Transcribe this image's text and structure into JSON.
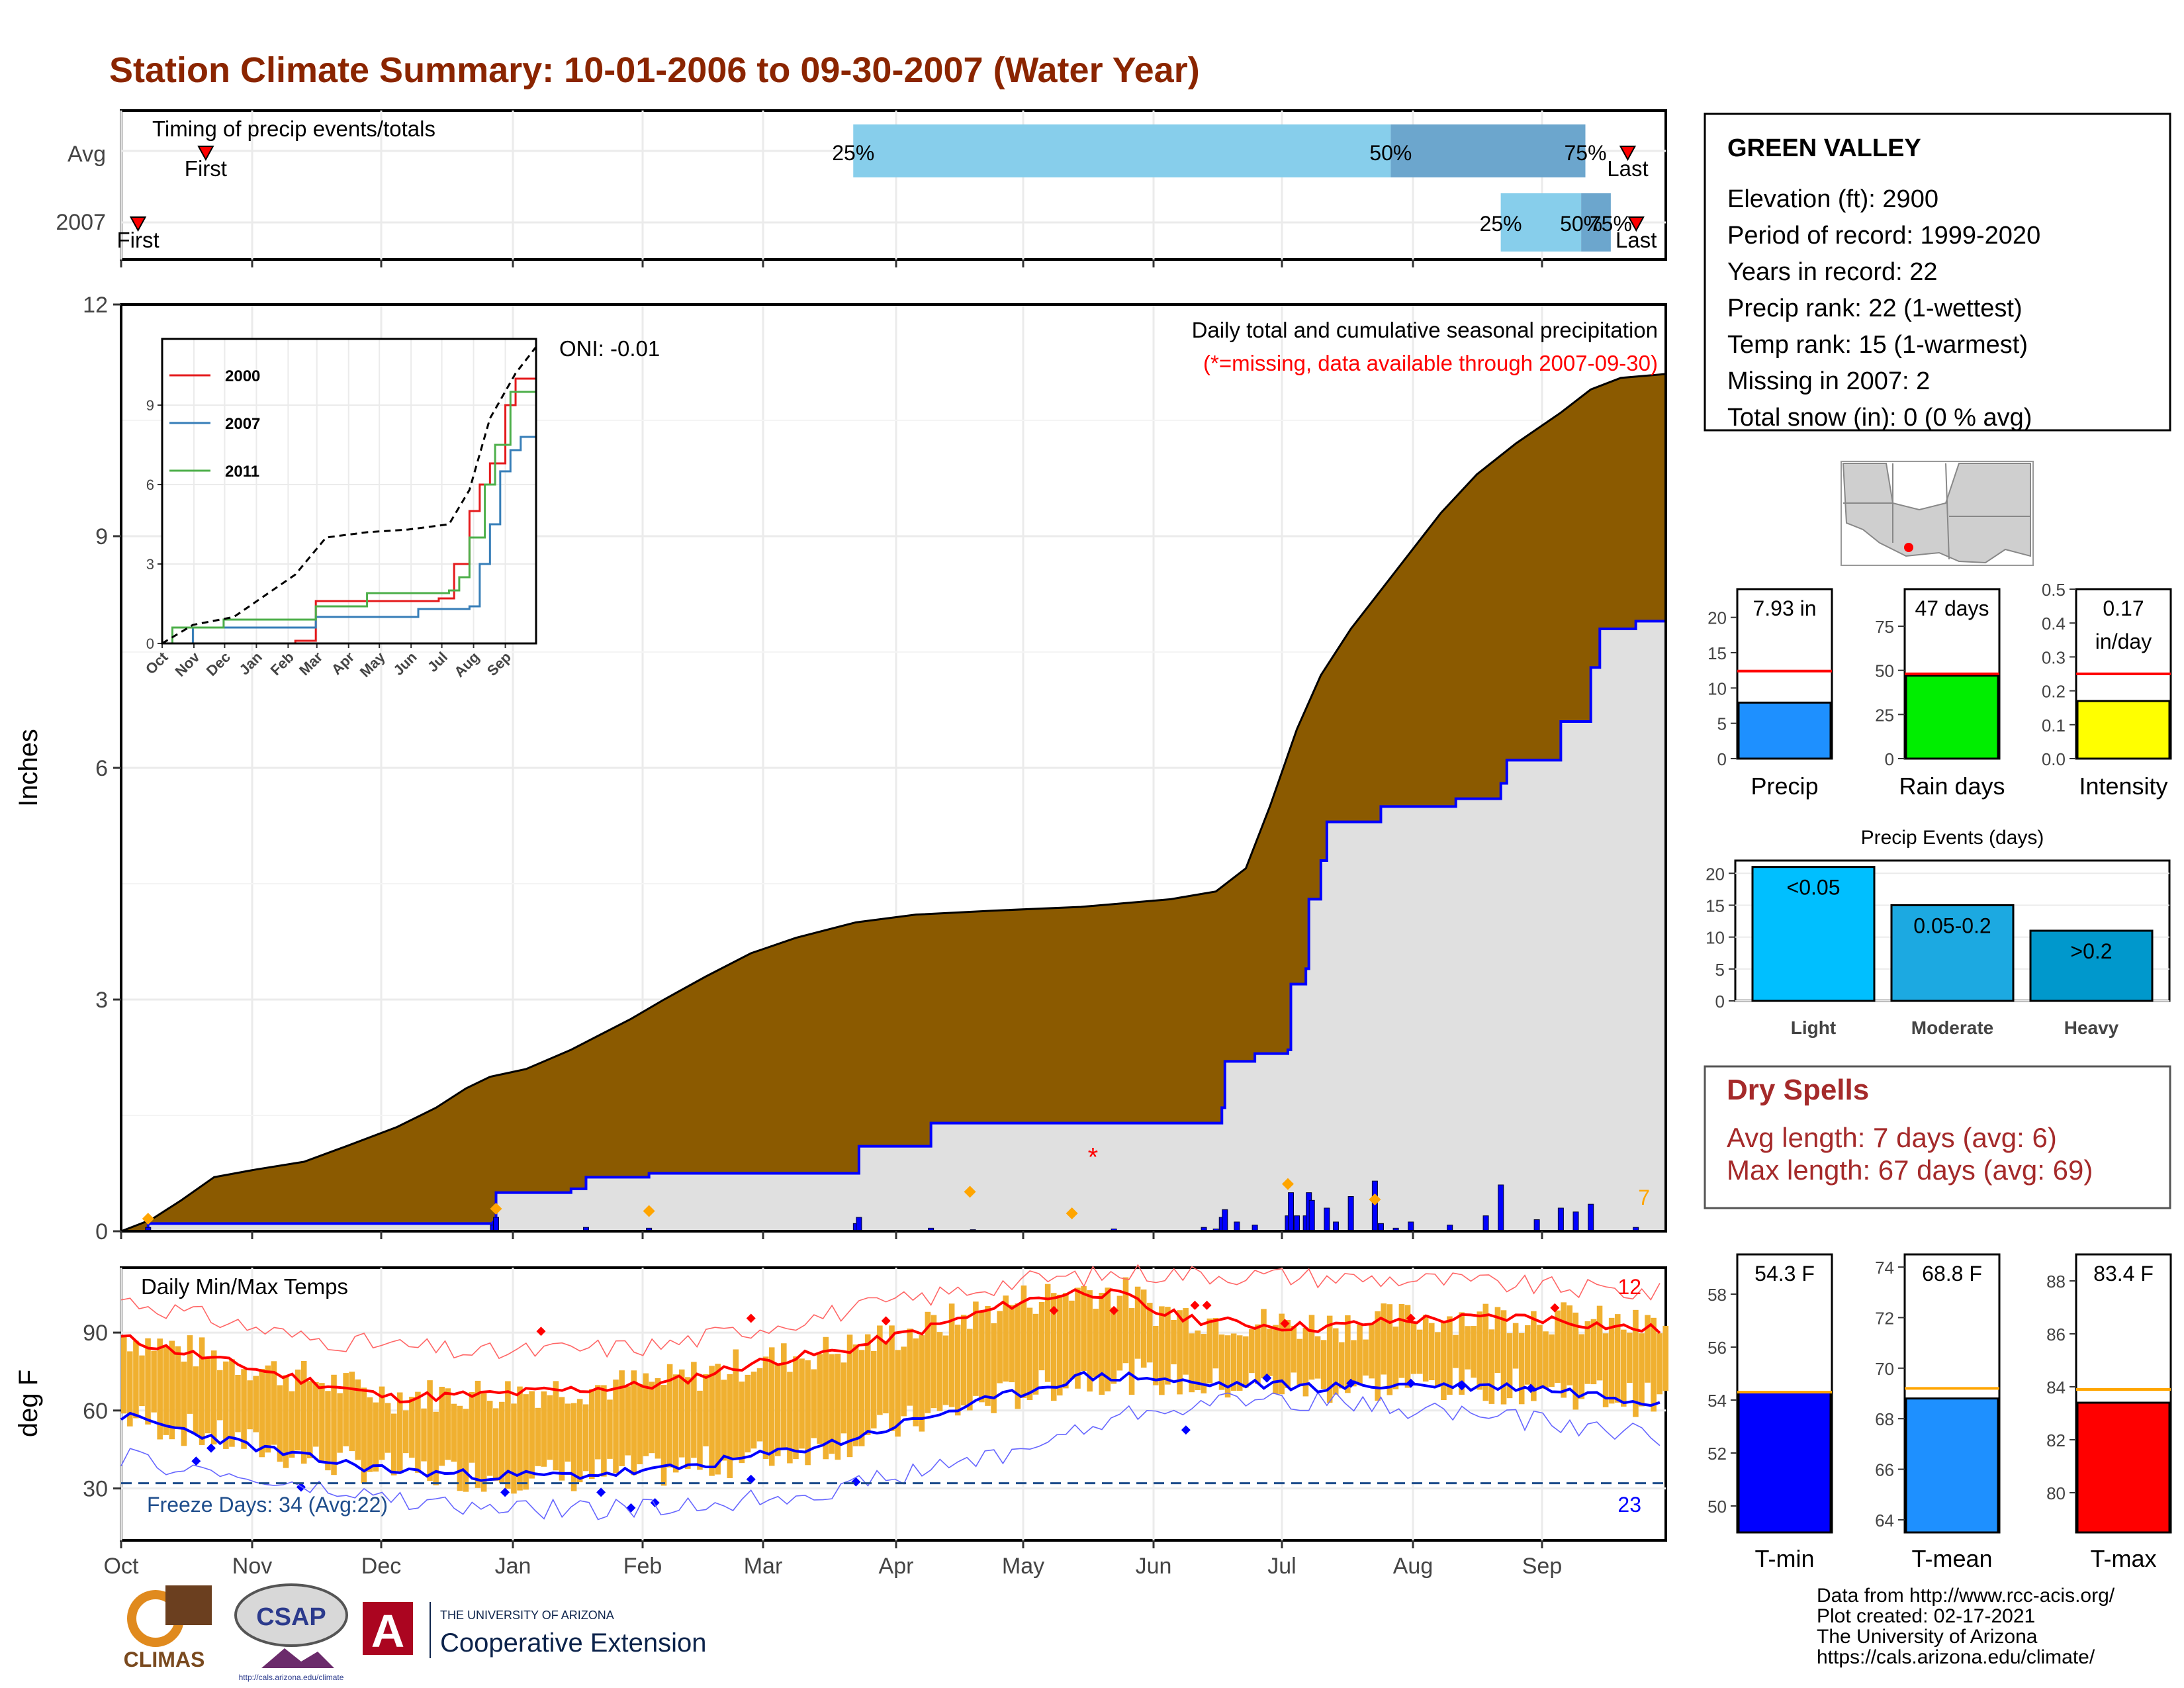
{
  "title": "Station Climate Summary: 10-01-2006 to 09-30-2007 (Water Year)",
  "months": [
    "Oct",
    "Nov",
    "Dec",
    "Jan",
    "Feb",
    "Mar",
    "Apr",
    "May",
    "Jun",
    "Jul",
    "Aug",
    "Sep"
  ],
  "timing": {
    "title": "Timing of precip events/totals",
    "rows": [
      "Avg",
      "2007"
    ],
    "avg": {
      "first_day": 20,
      "p25_day": 173,
      "p50_day": 300,
      "p75_day": 346,
      "last_day": 356
    },
    "y2007": {
      "first_day": 4,
      "p25_day": 326,
      "p50_day": 345,
      "p75_day": 352,
      "last_day": 358
    },
    "first_label": "First",
    "last_label": "Last",
    "pct_labels": [
      "25%",
      "50%",
      "75%"
    ]
  },
  "precip": {
    "ylabel": "Inches",
    "y_ticks": [
      0,
      3,
      6,
      9,
      12
    ],
    "ylim": [
      0,
      12
    ],
    "oni": "ONI: -0.01",
    "caption1": "Daily total and cumulative seasonal precipitation",
    "caption2": "(*=missing, data available through 2007-09-30)",
    "count_label": "7",
    "avg_cumulative": [
      [
        0,
        0
      ],
      [
        10,
        0.15
      ],
      [
        20,
        0.4
      ],
      [
        31,
        0.7
      ],
      [
        45,
        0.8
      ],
      [
        61,
        0.9
      ],
      [
        75,
        1.1
      ],
      [
        92,
        1.35
      ],
      [
        105,
        1.6
      ],
      [
        115,
        1.85
      ],
      [
        123,
        2.0
      ],
      [
        135,
        2.1
      ],
      [
        150,
        2.35
      ],
      [
        160,
        2.55
      ],
      [
        170,
        2.75
      ],
      [
        181,
        3.0
      ],
      [
        195,
        3.3
      ],
      [
        210,
        3.6
      ],
      [
        225,
        3.8
      ],
      [
        245,
        4.0
      ],
      [
        265,
        4.1
      ],
      [
        290,
        4.15
      ],
      [
        320,
        4.2
      ],
      [
        350,
        4.3
      ],
      [
        365,
        4.4
      ],
      [
        375,
        4.7
      ],
      [
        383,
        5.5
      ],
      [
        392,
        6.5
      ],
      [
        400,
        7.2
      ],
      [
        410,
        7.8
      ],
      [
        420,
        8.3
      ],
      [
        430,
        8.8
      ],
      [
        440,
        9.3
      ],
      [
        452,
        9.8
      ],
      [
        465,
        10.2
      ],
      [
        480,
        10.6
      ],
      [
        490,
        10.9
      ],
      [
        500,
        11.05
      ],
      [
        515,
        11.1
      ]
    ],
    "cumulative_2007": [
      [
        0,
        0
      ],
      [
        9,
        0.1
      ],
      [
        124,
        0.12
      ],
      [
        125,
        0.5
      ],
      [
        150,
        0.55
      ],
      [
        155,
        0.7
      ],
      [
        175,
        0.7
      ],
      [
        176,
        0.75
      ],
      [
        245,
        0.75
      ],
      [
        246,
        1.1
      ],
      [
        270,
        1.4
      ],
      [
        365,
        1.4
      ],
      [
        367,
        1.6
      ],
      [
        368,
        2.2
      ],
      [
        378,
        2.3
      ],
      [
        389,
        2.35
      ],
      [
        390,
        3.2
      ],
      [
        395,
        3.4
      ],
      [
        396,
        4.3
      ],
      [
        400,
        4.8
      ],
      [
        402,
        5.3
      ],
      [
        420,
        5.5
      ],
      [
        445,
        5.6
      ],
      [
        460,
        5.8
      ],
      [
        462,
        6.1
      ],
      [
        480,
        6.6
      ],
      [
        490,
        7.3
      ],
      [
        493,
        7.8
      ],
      [
        505,
        7.9
      ],
      [
        515,
        7.93
      ]
    ],
    "daily_2007": [
      [
        9,
        0.05
      ],
      [
        124,
        0.08
      ],
      [
        125,
        0.18
      ],
      [
        155,
        0.05
      ],
      [
        176,
        0.04
      ],
      [
        245,
        0.1
      ],
      [
        246,
        0.18
      ],
      [
        270,
        0.04
      ],
      [
        284,
        0.02
      ],
      [
        331,
        0.03
      ],
      [
        361,
        0.05
      ],
      [
        365,
        0.03
      ],
      [
        367,
        0.18
      ],
      [
        368,
        0.28
      ],
      [
        372,
        0.12
      ],
      [
        378,
        0.08
      ],
      [
        389,
        0.2
      ],
      [
        390,
        0.5
      ],
      [
        392,
        0.2
      ],
      [
        395,
        0.2
      ],
      [
        396,
        0.5
      ],
      [
        397,
        0.4
      ],
      [
        402,
        0.3
      ],
      [
        405,
        0.12
      ],
      [
        410,
        0.45
      ],
      [
        418,
        0.65
      ],
      [
        420,
        0.1
      ],
      [
        425,
        0.04
      ],
      [
        430,
        0.12
      ],
      [
        443,
        0.08
      ],
      [
        455,
        0.2
      ],
      [
        460,
        0.6
      ],
      [
        472,
        0.15
      ],
      [
        480,
        0.3
      ],
      [
        485,
        0.25
      ],
      [
        490,
        0.35
      ],
      [
        505,
        0.05
      ]
    ],
    "missing_day": 324,
    "missing_value": 1.0
  },
  "inset": {
    "y_ticks": [
      0,
      3,
      6,
      9
    ],
    "x_labels": [
      "Oct",
      "Nov",
      "Dec",
      "Jan",
      "Feb",
      "Mar",
      "Apr",
      "May",
      "Jun",
      "Jul",
      "Aug",
      "Sep"
    ],
    "series": [
      {
        "name": "2000",
        "color": "#e41a1c",
        "values": [
          [
            0,
            0
          ],
          [
            130,
            0.1
          ],
          [
            150,
            1.6
          ],
          [
            270,
            1.7
          ],
          [
            285,
            3
          ],
          [
            300,
            5
          ],
          [
            310,
            6
          ],
          [
            320,
            6.8
          ],
          [
            335,
            9
          ],
          [
            345,
            10
          ],
          [
            365,
            10.5
          ]
        ]
      },
      {
        "name": "2007",
        "color": "#377eb8",
        "values": [
          [
            0,
            0
          ],
          [
            30,
            0.6
          ],
          [
            150,
            1.0
          ],
          [
            250,
            1.3
          ],
          [
            300,
            1.4
          ],
          [
            310,
            3
          ],
          [
            320,
            4.5
          ],
          [
            330,
            6.5
          ],
          [
            340,
            7.3
          ],
          [
            350,
            7.8
          ],
          [
            365,
            8.5
          ]
        ]
      },
      {
        "name": "2011",
        "color": "#4daf4a",
        "values": [
          [
            0,
            0
          ],
          [
            10,
            0.6
          ],
          [
            60,
            0.9
          ],
          [
            150,
            1.4
          ],
          [
            200,
            1.9
          ],
          [
            280,
            2.0
          ],
          [
            290,
            2.5
          ],
          [
            300,
            4.0
          ],
          [
            315,
            6.0
          ],
          [
            325,
            7.5
          ],
          [
            340,
            9.5
          ],
          [
            365,
            10.6
          ]
        ]
      }
    ],
    "avg": [
      [
        0,
        0
      ],
      [
        30,
        0.7
      ],
      [
        70,
        1.0
      ],
      [
        100,
        1.8
      ],
      [
        130,
        2.6
      ],
      [
        160,
        4.0
      ],
      [
        200,
        4.2
      ],
      [
        240,
        4.3
      ],
      [
        280,
        4.5
      ],
      [
        300,
        5.8
      ],
      [
        320,
        8.5
      ],
      [
        345,
        10.2
      ],
      [
        365,
        11.2
      ]
    ]
  },
  "temps": {
    "ylabel": "deg F",
    "title": "Daily Min/Max Temps",
    "y_ticks": [
      30,
      60,
      90
    ],
    "ylim": [
      10,
      115
    ],
    "freeze_label": "Freeze Days: 34 (Avg:22)",
    "count_hot": "12",
    "count_cold": "23",
    "avg_max": [
      [
        0,
        88
      ],
      [
        30,
        80
      ],
      [
        60,
        72
      ],
      [
        90,
        65
      ],
      [
        120,
        66
      ],
      [
        150,
        68
      ],
      [
        180,
        70
      ],
      [
        210,
        78
      ],
      [
        240,
        83
      ],
      [
        270,
        92
      ],
      [
        300,
        102
      ],
      [
        320,
        106
      ],
      [
        335,
        104
      ],
      [
        345,
        98
      ],
      [
        360,
        95
      ],
      [
        378,
        93
      ],
      [
        400,
        92
      ],
      [
        430,
        95
      ],
      [
        470,
        96
      ],
      [
        500,
        92
      ],
      [
        515,
        91
      ]
    ],
    "avg_min": [
      [
        0,
        58
      ],
      [
        30,
        50
      ],
      [
        60,
        42
      ],
      [
        90,
        37
      ],
      [
        120,
        35
      ],
      [
        150,
        35
      ],
      [
        180,
        37
      ],
      [
        210,
        42
      ],
      [
        240,
        48
      ],
      [
        270,
        58
      ],
      [
        300,
        67
      ],
      [
        320,
        73
      ],
      [
        340,
        73
      ],
      [
        360,
        70
      ],
      [
        380,
        70
      ],
      [
        400,
        69
      ],
      [
        430,
        70
      ],
      [
        470,
        69
      ],
      [
        500,
        65
      ],
      [
        515,
        63
      ]
    ],
    "rec_max": [
      [
        0,
        103
      ],
      [
        60,
        88
      ],
      [
        120,
        82
      ],
      [
        180,
        85
      ],
      [
        240,
        98
      ],
      [
        300,
        110
      ],
      [
        340,
        113
      ],
      [
        380,
        112
      ],
      [
        440,
        110
      ],
      [
        515,
        105
      ]
    ],
    "rec_min": [
      [
        0,
        42
      ],
      [
        60,
        30
      ],
      [
        120,
        22
      ],
      [
        180,
        22
      ],
      [
        240,
        30
      ],
      [
        300,
        45
      ],
      [
        340,
        60
      ],
      [
        380,
        65
      ],
      [
        440,
        60
      ],
      [
        515,
        50
      ]
    ]
  },
  "station": {
    "name": "GREEN VALLEY",
    "lines": [
      "Elevation (ft): 2900",
      "Period of record: 1999-2020",
      "Years in record: 22",
      "Precip rank: 22 (1-wettest)",
      "Temp rank: 15 (1-warmest)",
      "Missing in 2007: 2",
      "Total snow (in): 0 (0 % avg)"
    ]
  },
  "bars_precip": [
    {
      "label": "Precip",
      "value_label": "7.93 in",
      "value": 7.93,
      "avg": 12.4,
      "color": "#1e90ff",
      "ticks": [
        0,
        5,
        10,
        15,
        20
      ],
      "ylim": [
        0,
        24
      ]
    },
    {
      "label": "Rain days",
      "value_label": "47 days",
      "value": 47,
      "avg": 48,
      "color": "#00ee00",
      "ticks": [
        0,
        25,
        50,
        75
      ],
      "ylim": [
        0,
        96
      ]
    },
    {
      "label": "Intensity",
      "value_label": "0.17\nin/day",
      "value": 0.17,
      "avg": 0.25,
      "color": "#ffff00",
      "ticks": [
        "0.0",
        "0.1",
        "0.2",
        "0.3",
        "0.4",
        "0.5"
      ],
      "ylim": [
        0,
        0.5
      ]
    }
  ],
  "events": {
    "title": "Precip Events (days)",
    "ticks": [
      0,
      5,
      10,
      15,
      20
    ],
    "categories": [
      "Light",
      "Moderate",
      "Heavy"
    ],
    "labels": [
      "<0.05",
      "0.05-0.2",
      ">0.2"
    ],
    "values": [
      21,
      15,
      11
    ],
    "colors": [
      "#00bfff",
      "#1ca9e1",
      "#0098cc"
    ]
  },
  "dry": {
    "title": "Dry Spells",
    "avg": "Avg length: 7 days (avg: 6)",
    "max": "Max length: 67 days (avg: 69)"
  },
  "bars_temp": [
    {
      "label": "T-min",
      "value_label": "54.3 F",
      "value": 54.3,
      "avg": 54.3,
      "color": "#0000ff",
      "ticks": [
        50,
        52,
        54,
        56,
        58
      ],
      "ylim": [
        49,
        59.5
      ]
    },
    {
      "label": "T-mean",
      "value_label": "68.8 F",
      "value": 68.8,
      "avg": 69.2,
      "color": "#1e90ff",
      "ticks": [
        64,
        66,
        68,
        70,
        72,
        74
      ],
      "ylim": [
        63.5,
        74.5
      ]
    },
    {
      "label": "T-max",
      "value_label": "83.4 F",
      "value": 83.4,
      "avg": 83.9,
      "color": "#ff0000",
      "ticks": [
        80,
        82,
        84,
        86,
        88
      ],
      "ylim": [
        78.5,
        89
      ]
    }
  ],
  "footer": {
    "lines": [
      "Data from http://www.rcc-acis.org/",
      "Plot created: 02-17-2021",
      "The University of Arizona",
      "https://cals.arizona.edu/climate/"
    ],
    "logo1": "CLIMAS",
    "logo2": "CSAP",
    "logo2_sub": "http://cals.arizona.edu/climate",
    "ua_small": "THE UNIVERSITY OF ARIZONA",
    "ua_big": "Cooperative Extension"
  },
  "colors": {
    "title": "#8b2500",
    "avg_fill": "#8b5a00",
    "cum_fill": "#e0e0e0",
    "cum_line": "#0000ff",
    "bar_fill": "#f0b030",
    "dry_text": "#a52a2a"
  }
}
